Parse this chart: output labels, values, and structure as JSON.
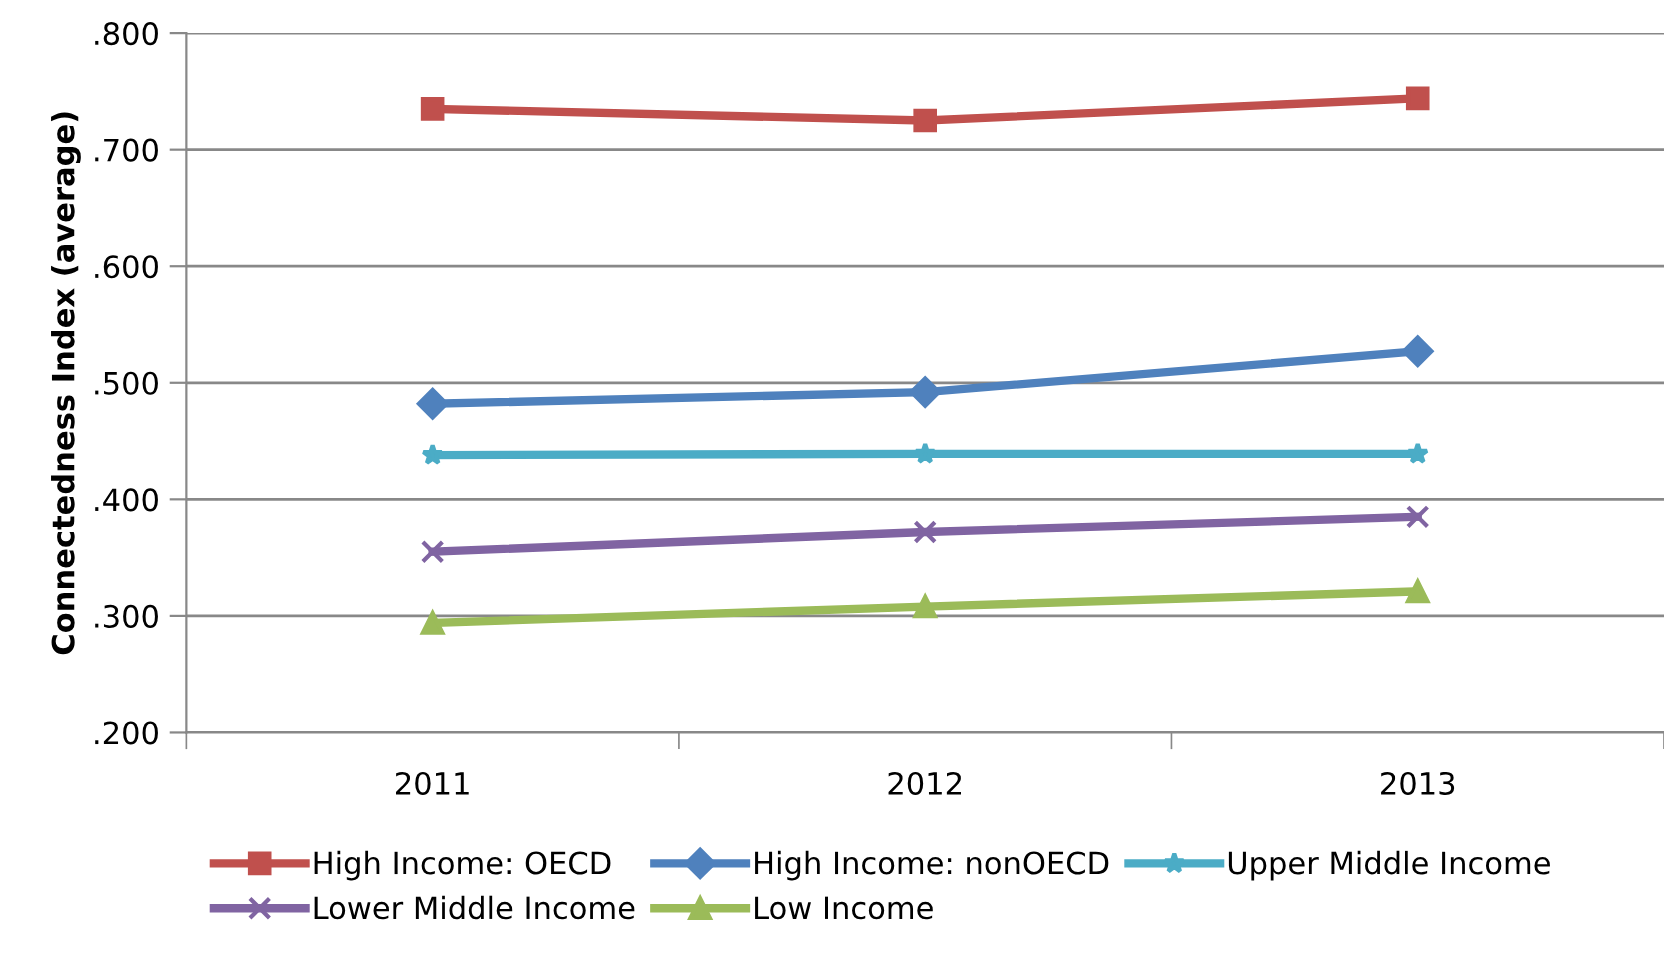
{
  "chart_data": {
    "type": "line",
    "ylabel": "Connectedness Index (average)",
    "categories": [
      "2011",
      "2012",
      "2013"
    ],
    "series": [
      {
        "name": "High Income: OECD",
        "color": "#c0504d",
        "marker": "square",
        "values": [
          0.735,
          0.725,
          0.744
        ]
      },
      {
        "name": "High Income: nonOECD",
        "color": "#4f81bd",
        "marker": "diamond",
        "values": [
          0.482,
          0.492,
          0.527
        ]
      },
      {
        "name": "Upper Middle Income",
        "color": "#4bacc6",
        "marker": "star",
        "values": [
          0.438,
          0.439,
          0.439
        ]
      },
      {
        "name": "Lower Middle Income",
        "color": "#8064a2",
        "marker": "cross",
        "values": [
          0.355,
          0.372,
          0.385
        ]
      },
      {
        "name": "Low Income",
        "color": "#9bbb59",
        "marker": "triangle",
        "values": [
          0.294,
          0.308,
          0.321
        ]
      }
    ],
    "ylim": [
      0.2,
      0.8
    ],
    "yticks": [
      {
        "value": 0.2,
        "label": ".200"
      },
      {
        "value": 0.3,
        "label": ".300"
      },
      {
        "value": 0.4,
        "label": ".400"
      },
      {
        "value": 0.5,
        "label": ".500"
      },
      {
        "value": 0.6,
        "label": ".600"
      },
      {
        "value": 0.7,
        "label": ".700"
      },
      {
        "value": 0.8,
        "label": ".800"
      }
    ],
    "grid": "y",
    "legend": "bottom",
    "line_style": "solid"
  }
}
